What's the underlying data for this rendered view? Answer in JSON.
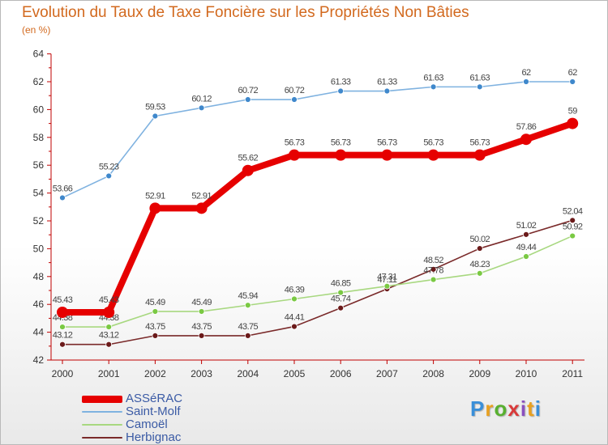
{
  "title": "Evolution du Taux de Taxe Foncière sur les Propriétés Non Bâties",
  "unit_label": "(en %)",
  "logo": {
    "text": "Proxiti",
    "letter_colors": [
      "#3a8fd9",
      "#e8a020",
      "#58b030",
      "#d93a3a",
      "#8a4fbf",
      "#e8a020",
      "#3a8fd9"
    ]
  },
  "chart_data": {
    "type": "line",
    "title": "Evolution du Taux de Taxe Foncière sur les Propriétés Non Bâties",
    "ylabel": "(en %)",
    "xlabel": "",
    "ylim": [
      42,
      64
    ],
    "yticks": [
      42,
      44,
      46,
      48,
      50,
      52,
      54,
      56,
      58,
      60,
      62,
      64
    ],
    "categories": [
      "2000",
      "2001",
      "2002",
      "2003",
      "2004",
      "2005",
      "2006",
      "2007",
      "2008",
      "2009",
      "2010",
      "2011"
    ],
    "series": [
      {
        "name": "Herbignac",
        "color": "#7a2a2a",
        "marker": "#6b1a1a",
        "values": [
          43.12,
          43.12,
          43.75,
          43.75,
          43.75,
          44.41,
          45.74,
          47.11,
          48.52,
          50.02,
          51.02,
          52.04
        ]
      },
      {
        "name": "Camoël",
        "color": "#a8d880",
        "marker": "#7ac943",
        "values": [
          44.38,
          44.38,
          45.49,
          45.49,
          45.94,
          46.39,
          46.85,
          47.31,
          47.78,
          48.23,
          49.44,
          50.92
        ]
      },
      {
        "name": "Saint-Molf",
        "color": "#7fb2e0",
        "marker": "#3f88cc",
        "values": [
          53.66,
          55.23,
          59.53,
          60.12,
          60.72,
          60.72,
          61.33,
          61.33,
          61.63,
          61.63,
          62,
          62
        ]
      },
      {
        "name": "ASSéRAC",
        "color": "#e60000",
        "marker": "#e60000",
        "values": [
          45.43,
          45.43,
          52.91,
          52.91,
          55.62,
          56.73,
          56.73,
          56.73,
          56.73,
          56.73,
          57.86,
          59
        ]
      }
    ],
    "value_labels": {
      "Herbignac": [
        "43.12",
        "43.12",
        "43.75",
        "43.75",
        "43.75",
        "44.41",
        "45.74",
        "47.11",
        "48.52",
        "50.02",
        "51.02",
        "52.04"
      ],
      "Camoël": [
        "44.38",
        "44.38",
        "45.49",
        "45.49",
        "45.94",
        "46.39",
        "46.85",
        "47.31",
        "47.78",
        "48.23",
        "49.44",
        "50.92"
      ],
      "Saint-Molf": [
        "53.66",
        "55.23",
        "59.53",
        "60.12",
        "60.72",
        "60.72",
        "61.33",
        "61.33",
        "61.63",
        "61.63",
        "62",
        "62"
      ],
      "ASSéRAC": [
        "45.43",
        "45.43",
        "52.91",
        "52.91",
        "55.62",
        "56.73",
        "56.73",
        "56.73",
        "56.73",
        "56.73",
        "57.86",
        "59"
      ]
    },
    "legend": [
      "ASSéRAC",
      "Saint-Molf",
      "Camoël",
      "Herbignac"
    ],
    "legend_position": "bottom-left",
    "grid": false
  }
}
